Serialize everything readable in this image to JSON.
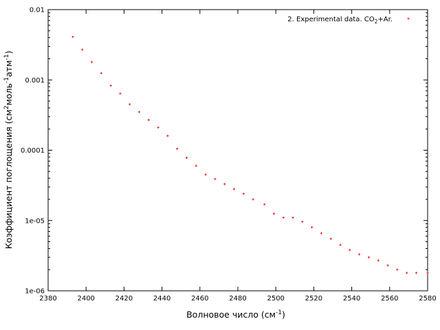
{
  "chart_data": {
    "type": "scatter",
    "title": "",
    "xlabel": {
      "base": "Волновое число (см",
      "sup": "-1",
      "tail": ")"
    },
    "ylabel": {
      "parts": [
        {
          "t": "Коэффициент поглощения (см",
          "sup": false
        },
        {
          "t": "2",
          "sup": true
        },
        {
          "t": "моль",
          "sup": false
        },
        {
          "t": "-1",
          "sup": true
        },
        {
          "t": "атм",
          "sup": false
        },
        {
          "t": "-1",
          "sup": true
        },
        {
          "t": ")",
          "sup": false
        }
      ]
    },
    "xlim": [
      2380,
      2580
    ],
    "ylim": [
      1e-06,
      0.01
    ],
    "yscale": "log",
    "grid": false,
    "legend_position": "top-right",
    "x_ticks": [
      2380,
      2400,
      2420,
      2440,
      2460,
      2480,
      2500,
      2520,
      2540,
      2560,
      2580
    ],
    "y_ticks": [
      {
        "value": 1e-06,
        "label": "1e-06"
      },
      {
        "value": 1e-05,
        "label": "1e-05"
      },
      {
        "value": 0.0001,
        "label": "0.0001"
      },
      {
        "value": 0.001,
        "label": "0.001"
      },
      {
        "value": 0.01,
        "label": "0.01"
      }
    ],
    "series": [
      {
        "name": "2. Experimental data. CO2+Ar.",
        "legend_label": {
          "pre": "2. Experimental data. CO",
          "sub": "2",
          "post": "+Ar."
        },
        "color": "#e41a1c",
        "marker": "+",
        "x": [
          2393,
          2398,
          2403,
          2408,
          2413,
          2418,
          2423,
          2428,
          2433,
          2438,
          2443,
          2448,
          2453,
          2458,
          2463,
          2468,
          2473,
          2478,
          2483,
          2488,
          2494,
          2499,
          2504,
          2509,
          2514,
          2519,
          2524,
          2529,
          2534,
          2539,
          2544,
          2549,
          2554,
          2559,
          2564,
          2569,
          2574,
          2580
        ],
        "y": [
          0.0041,
          0.0027,
          0.0018,
          0.00125,
          0.00083,
          0.00064,
          0.00045,
          0.00035,
          0.00027,
          0.00021,
          0.00016,
          0.000105,
          7.8e-05,
          6e-05,
          4.5e-05,
          3.9e-05,
          3.3e-05,
          2.8e-05,
          2.4e-05,
          2e-05,
          1.7e-05,
          1.25e-05,
          1.1e-05,
          1.1e-05,
          9.6e-06,
          8e-06,
          6.6e-06,
          5.5e-06,
          4.5e-06,
          3.8e-06,
          3.3e-06,
          3e-06,
          2.7e-06,
          2.3e-06,
          2e-06,
          1.8e-06,
          1.8e-06,
          1.8e-06
        ]
      }
    ]
  }
}
